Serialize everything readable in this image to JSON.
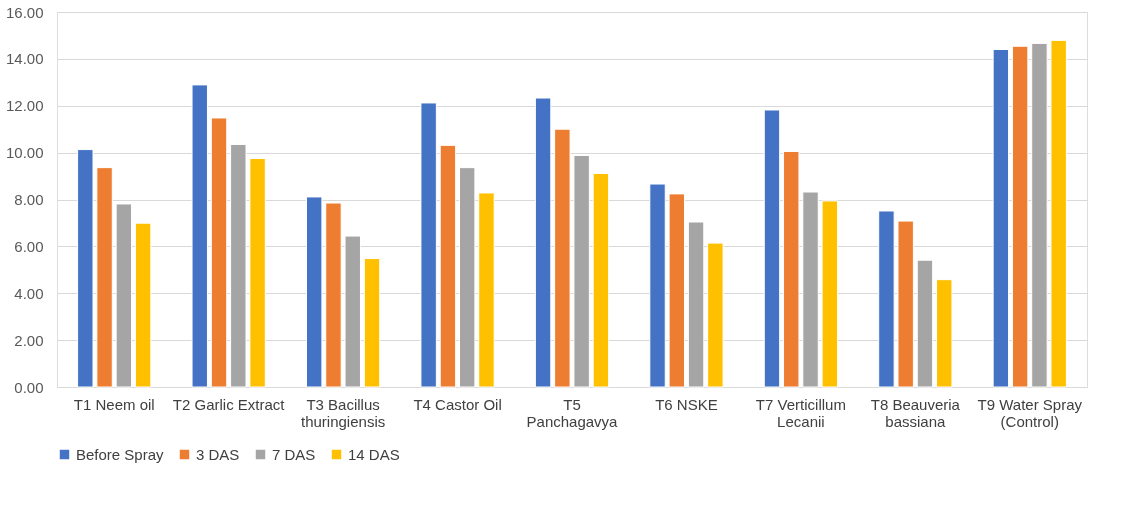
{
  "chart_data": {
    "type": "bar",
    "categories": [
      "T1 Neem oil",
      "T2 Garlic Extract",
      "T3 Bacillus thuringiensis",
      "T4 Castor Oil",
      "T5 Panchagavya",
      "T6 NSKE",
      "T7 Verticillum Lecanii",
      "T8 Beauveria bassiana",
      "T9 Water Spray (Control)"
    ],
    "series": [
      {
        "name": "Before Spray",
        "color": "#4472c4",
        "values": [
          10.13,
          12.89,
          8.11,
          12.12,
          12.33,
          8.66,
          11.82,
          7.51,
          14.4
        ]
      },
      {
        "name": "3 DAS",
        "color": "#ed7d31",
        "values": [
          9.36,
          11.48,
          7.85,
          10.31,
          11.0,
          8.24,
          10.05,
          7.08,
          14.54
        ]
      },
      {
        "name": "7 DAS",
        "color": "#a5a5a5",
        "values": [
          7.81,
          10.35,
          6.44,
          9.36,
          9.88,
          7.04,
          8.32,
          5.41,
          14.66
        ]
      },
      {
        "name": "14 DAS",
        "color": "#ffc000",
        "values": [
          6.99,
          9.75,
          5.48,
          8.28,
          9.11,
          6.14,
          7.94,
          4.58,
          14.79
        ]
      }
    ],
    "ylim": [
      0,
      16
    ],
    "yticks": [
      {
        "value": 0,
        "label": "0.00"
      },
      {
        "value": 2,
        "label": "2.00"
      },
      {
        "value": 4,
        "label": "4.00"
      },
      {
        "value": 6,
        "label": "6.00"
      },
      {
        "value": 8,
        "label": "8.00"
      },
      {
        "value": 10,
        "label": "10.00"
      },
      {
        "value": 12,
        "label": "12.00"
      },
      {
        "value": 14,
        "label": "14.00"
      },
      {
        "value": 16,
        "label": "16.00"
      }
    ],
    "grid": "y",
    "legend": "bottom"
  }
}
